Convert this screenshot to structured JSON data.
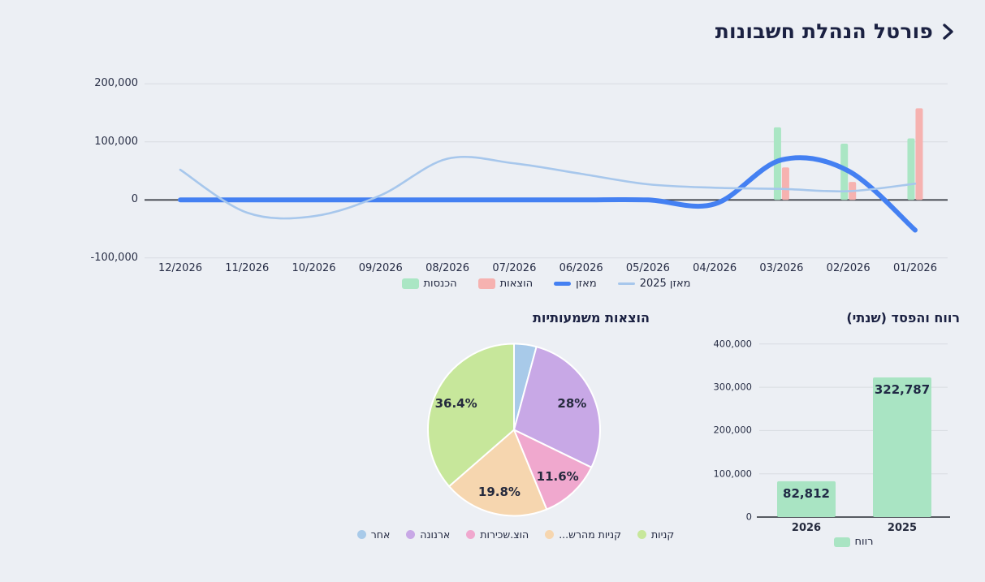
{
  "page": {
    "title": "פורטל הנהלת חשבונות",
    "back_chevron_icon": "chevron-right-icon"
  },
  "colors": {
    "background": "#ECEFF4",
    "text_dark": "#1B2142",
    "grid_light": "#D8DCE1",
    "axis_dark": "#41454C",
    "income_green": "#AAE6C4",
    "expense_pink": "#F6B2B0",
    "balance_blue": "#4480F2",
    "balance_2025_blue": "#A7C7EC",
    "profit_green": "#A9E4C3"
  },
  "chart_data": [
    {
      "id": "monthly-balance-combo",
      "type": "bar",
      "subtype": "bar+line combo",
      "title": "",
      "categories": [
        "12/2026",
        "11/2026",
        "10/2026",
        "09/2026",
        "08/2026",
        "07/2026",
        "06/2026",
        "05/2026",
        "04/2026",
        "03/2026",
        "02/2026",
        "01/2026"
      ],
      "ylim": [
        -100000,
        200000
      ],
      "yticks": [
        {
          "value": 200000,
          "label": "200,000"
        },
        {
          "value": 100000,
          "label": "100,000"
        },
        {
          "value": 0,
          "label": "0"
        },
        {
          "value": -100000,
          "label": "-100,000"
        }
      ],
      "grid": true,
      "legend_position": "bottom",
      "series": [
        {
          "name": "הכנסות",
          "type": "bar",
          "color": "#AAE6C4",
          "values": [
            null,
            null,
            null,
            null,
            null,
            null,
            null,
            null,
            null,
            125000,
            97000,
            106000
          ]
        },
        {
          "name": "הוצאות",
          "type": "bar",
          "color": "#F6B2B0",
          "values": [
            null,
            null,
            null,
            null,
            null,
            null,
            null,
            null,
            null,
            56000,
            31000,
            158000
          ]
        },
        {
          "name": "מאזן",
          "type": "line",
          "color": "#4480F2",
          "stroke_width": 6,
          "values": [
            0,
            0,
            0,
            0,
            0,
            0,
            0,
            0,
            -7000,
            69000,
            50000,
            -52000
          ]
        },
        {
          "name": "מאזן 2025",
          "type": "line",
          "color": "#A7C7EC",
          "stroke_width": 2.6,
          "values": [
            52000,
            -22000,
            -28000,
            8000,
            71000,
            63000,
            45000,
            27000,
            21000,
            19000,
            15000,
            28000
          ]
        }
      ]
    },
    {
      "id": "significant-expenses-pie",
      "type": "pie",
      "title": "הוצאות משמעותיות",
      "legend_position": "bottom",
      "slices": [
        {
          "label": "אחר",
          "pct": 4.2,
          "pct_label": "",
          "color": "#A8CAE9"
        },
        {
          "label": "ארנונה",
          "pct": 28,
          "pct_label": "28%",
          "color": "#C8A8E6"
        },
        {
          "label": "הוצ.שכירות",
          "pct": 11.6,
          "pct_label": "11.6%",
          "color": "#F0A8CE"
        },
        {
          "label": "קניות מהרש...",
          "pct": 19.8,
          "pct_label": "19.8%",
          "color": "#F6D6AF"
        },
        {
          "label": "קניות",
          "pct": 36.4,
          "pct_label": "36.4%",
          "color": "#C7E79B"
        }
      ]
    },
    {
      "id": "annual-profit-loss-bars",
      "type": "bar",
      "title": "רווח והפסד (שנתי)",
      "categories": [
        "2026",
        "2025"
      ],
      "ylim": [
        0,
        400000
      ],
      "yticks": [
        {
          "value": 400000,
          "label": "400,000"
        },
        {
          "value": 300000,
          "label": "300,000"
        },
        {
          "value": 200000,
          "label": "200,000"
        },
        {
          "value": 100000,
          "label": "100,000"
        },
        {
          "value": 0,
          "label": "0"
        }
      ],
      "grid": true,
      "legend_position": "bottom",
      "series": [
        {
          "name": "רווח",
          "color": "#A9E4C3",
          "values": [
            82812,
            322787
          ],
          "value_labels": [
            "82,812",
            "322,787"
          ]
        }
      ]
    }
  ]
}
